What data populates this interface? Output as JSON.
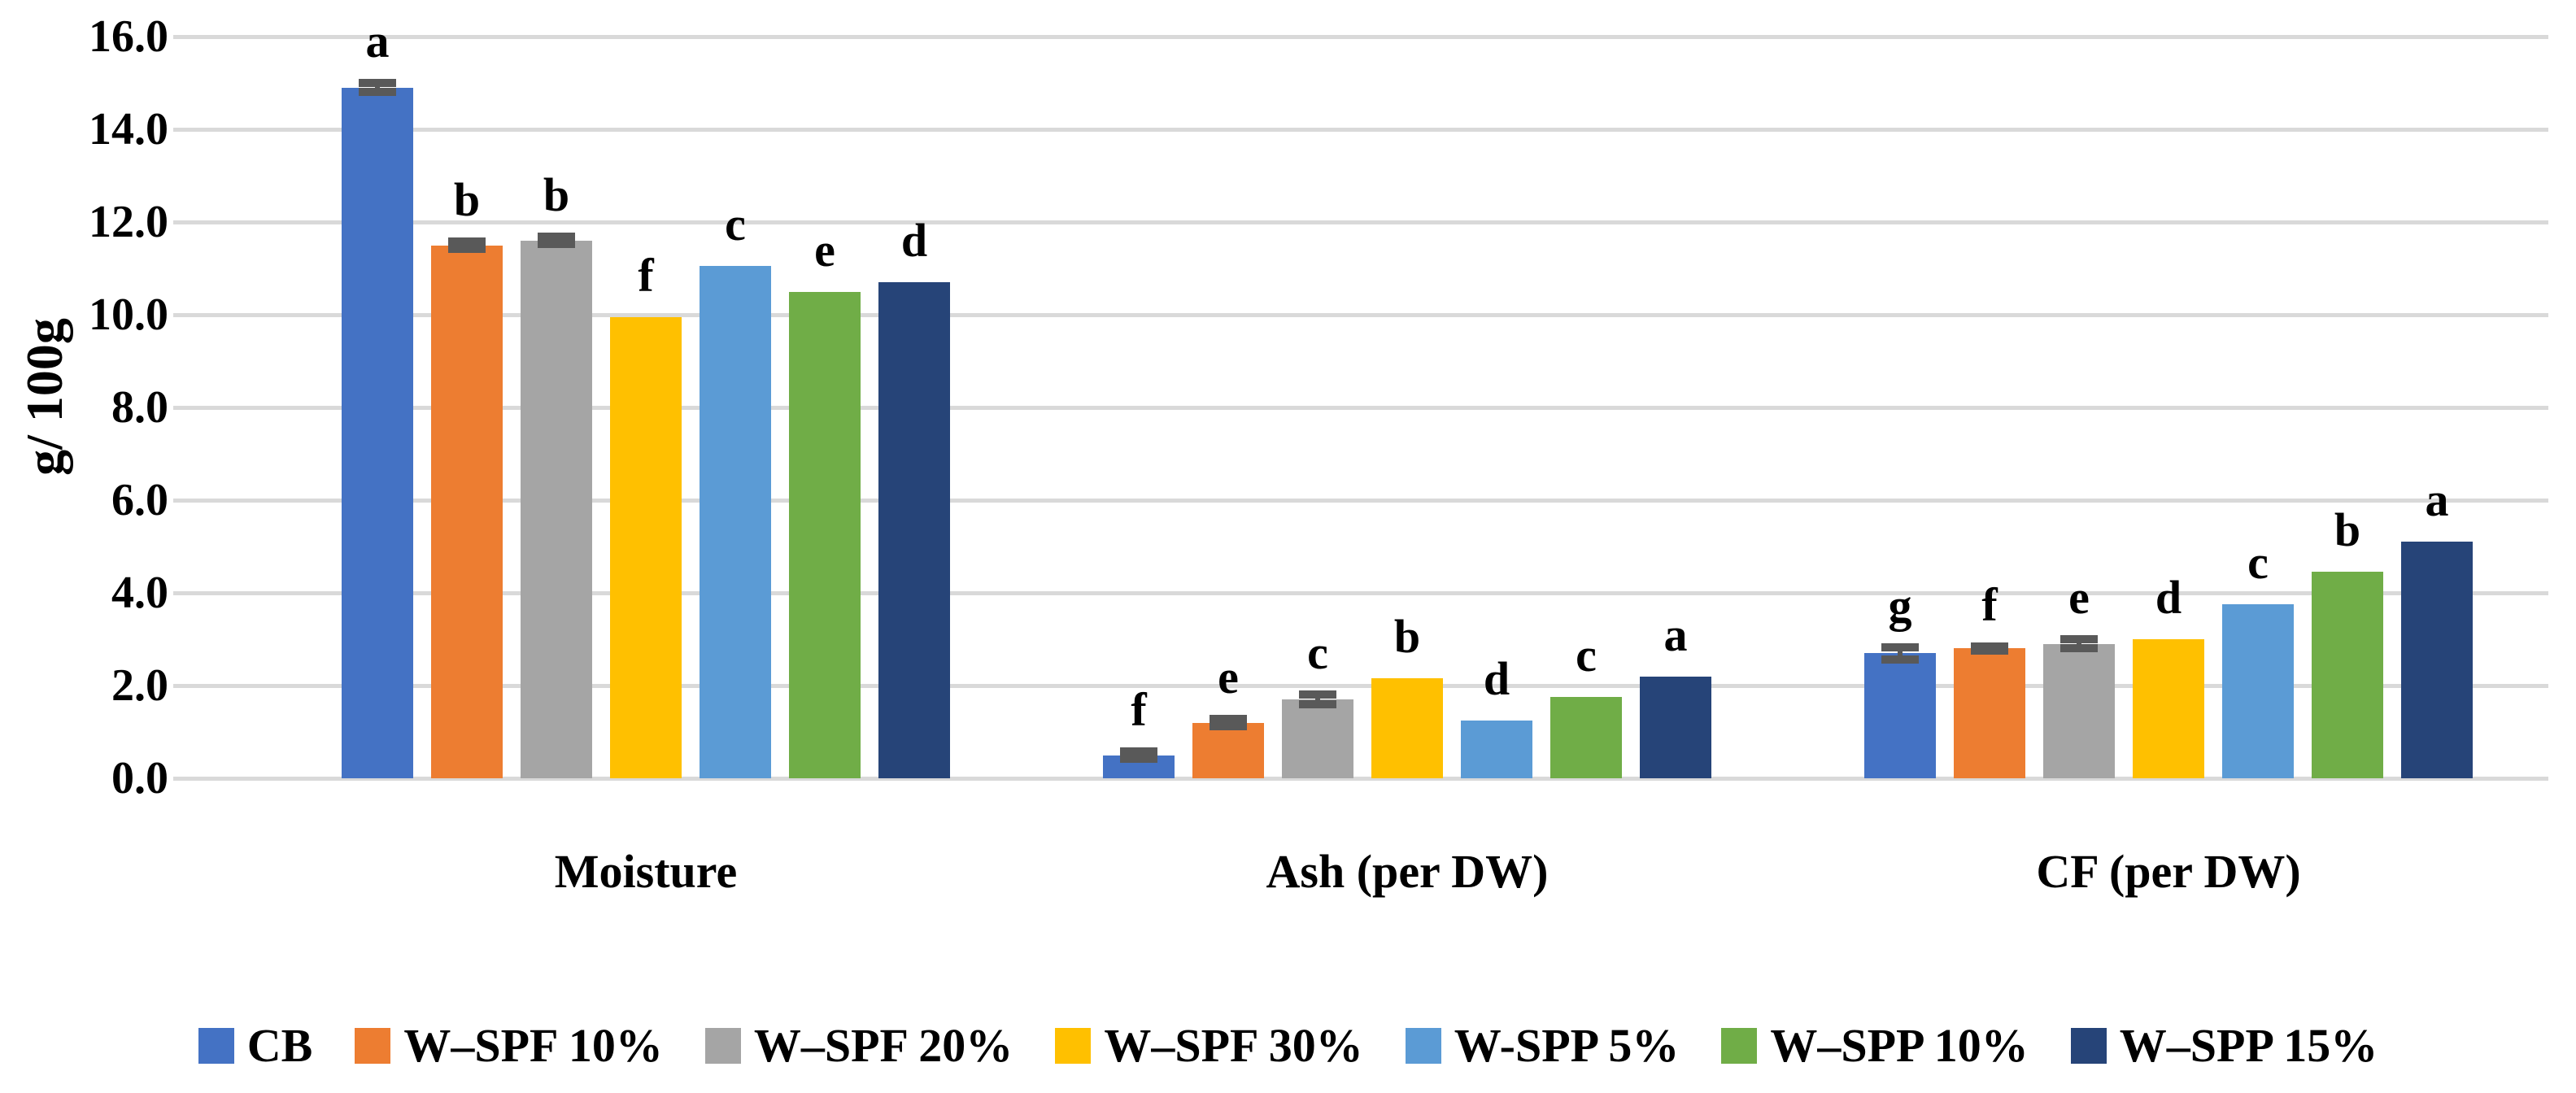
{
  "chart_data": {
    "type": "bar",
    "title": "",
    "ylabel": "g/ 100g",
    "xlabel": "",
    "ylim": [
      0,
      16
    ],
    "ytick_step": 2,
    "ytick_labels": [
      "0.0",
      "2.0",
      "4.0",
      "6.0",
      "8.0",
      "10.0",
      "12.0",
      "14.0",
      "16.0"
    ],
    "grid": true,
    "gridline_color": "#D9D9D9",
    "error_bar_color": "#595959",
    "legend_position": "bottom",
    "categories": [
      "Moisture",
      "Ash (per DW)",
      "CF (per DW)"
    ],
    "series": [
      {
        "name": "CB",
        "color": "#4472C4",
        "values": [
          14.9,
          0.5,
          2.7
        ],
        "errors": [
          0.1,
          0.08,
          0.13
        ],
        "letters": [
          "a",
          "f",
          "g"
        ]
      },
      {
        "name": "W–SPF 10%",
        "color": "#ED7D31",
        "values": [
          11.5,
          1.2,
          2.8
        ],
        "errors": [
          0.08,
          0.08,
          0.05
        ],
        "letters": [
          "b",
          "e",
          "f"
        ]
      },
      {
        "name": "W–SPF 20%",
        "color": "#A5A5A5",
        "values": [
          11.6,
          1.7,
          2.9
        ],
        "errors": [
          0.08,
          0.1,
          0.1
        ],
        "letters": [
          "b",
          "c",
          "e"
        ]
      },
      {
        "name": "W–SPF 30%",
        "color": "#FFC000",
        "values": [
          9.95,
          2.15,
          3.0
        ],
        "errors": [
          0,
          0,
          0
        ],
        "letters": [
          "f",
          "b",
          "d"
        ]
      },
      {
        "name": "W-SPP 5%",
        "color": "#5B9BD5",
        "values": [
          11.05,
          1.25,
          3.75
        ],
        "errors": [
          0,
          0,
          0
        ],
        "letters": [
          "c",
          "d",
          "c"
        ]
      },
      {
        "name": "W–SPP 10%",
        "color": "#70AD47",
        "values": [
          10.5,
          1.75,
          4.45
        ],
        "errors": [
          0,
          0,
          0
        ],
        "letters": [
          "e",
          "c",
          "b"
        ]
      },
      {
        "name": "W–SPP 15%",
        "color": "#264478",
        "values": [
          10.7,
          2.2,
          5.1
        ],
        "errors": [
          0,
          0,
          0
        ],
        "letters": [
          "d",
          "a",
          "a"
        ]
      }
    ]
  }
}
